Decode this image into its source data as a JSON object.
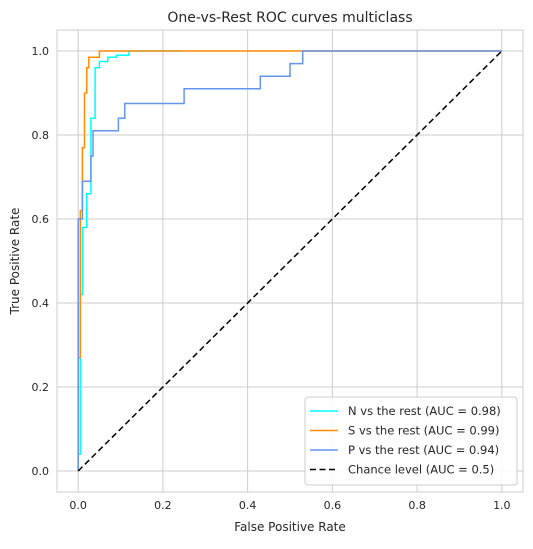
{
  "chart_data": {
    "type": "line",
    "title": "One-vs-Rest ROC curves multiclass",
    "xlabel": "False Positive Rate",
    "ylabel": "True Positive Rate",
    "xlim": [
      -0.05,
      1.05
    ],
    "ylim": [
      -0.05,
      1.05
    ],
    "xticks": [
      0.0,
      0.2,
      0.4,
      0.6,
      0.8,
      1.0
    ],
    "yticks": [
      0.0,
      0.2,
      0.4,
      0.6,
      0.8,
      1.0
    ],
    "xtick_labels": [
      "0.0",
      "0.2",
      "0.4",
      "0.6",
      "0.8",
      "1.0"
    ],
    "ytick_labels": [
      "0.0",
      "0.2",
      "0.4",
      "0.6",
      "0.8",
      "1.0"
    ],
    "grid": true,
    "legend_position": "lower-right",
    "series": [
      {
        "name": "N vs the rest (AUC = 0.98)",
        "color": "#00ffff",
        "dash": "solid",
        "x": [
          0.0,
          0.0,
          0.005,
          0.005,
          0.01,
          0.01,
          0.015,
          0.015,
          0.02,
          0.02,
          0.03,
          0.03,
          0.04,
          0.04,
          0.05,
          0.05,
          0.07,
          0.07,
          0.09,
          0.09,
          0.12,
          0.12,
          0.245
        ],
        "y": [
          0.0,
          0.04,
          0.04,
          0.42,
          0.42,
          0.58,
          0.58,
          0.58,
          0.58,
          0.66,
          0.66,
          0.84,
          0.84,
          0.96,
          0.96,
          0.975,
          0.975,
          0.985,
          0.985,
          0.99,
          0.99,
          1.0,
          1.0
        ]
      },
      {
        "name": "S vs the rest (AUC = 0.99)",
        "color": "#ff8c00",
        "dash": "solid",
        "x": [
          0.0,
          0.0,
          0.005,
          0.005,
          0.01,
          0.01,
          0.015,
          0.015,
          0.02,
          0.02,
          0.025,
          0.025,
          0.05,
          0.05,
          1.0
        ],
        "y": [
          0.0,
          0.27,
          0.27,
          0.62,
          0.62,
          0.77,
          0.77,
          0.9,
          0.9,
          0.96,
          0.96,
          0.985,
          0.985,
          1.0,
          1.0
        ]
      },
      {
        "name": "P vs the rest (AUC = 0.94)",
        "color": "#6495ed",
        "dash": "solid",
        "x": [
          0.0,
          0.0,
          0.01,
          0.01,
          0.03,
          0.03,
          0.035,
          0.035,
          0.095,
          0.095,
          0.11,
          0.11,
          0.25,
          0.25,
          0.43,
          0.43,
          0.5,
          0.5,
          0.53,
          0.53,
          1.0
        ],
        "y": [
          0.0,
          0.6,
          0.6,
          0.69,
          0.69,
          0.75,
          0.75,
          0.81,
          0.81,
          0.84,
          0.84,
          0.875,
          0.875,
          0.91,
          0.91,
          0.94,
          0.94,
          0.97,
          0.97,
          1.0,
          1.0
        ]
      },
      {
        "name": "Chance level (AUC = 0.5)",
        "color": "#000000",
        "dash": "dashed",
        "x": [
          0.0,
          1.0
        ],
        "y": [
          0.0,
          1.0
        ]
      }
    ]
  }
}
